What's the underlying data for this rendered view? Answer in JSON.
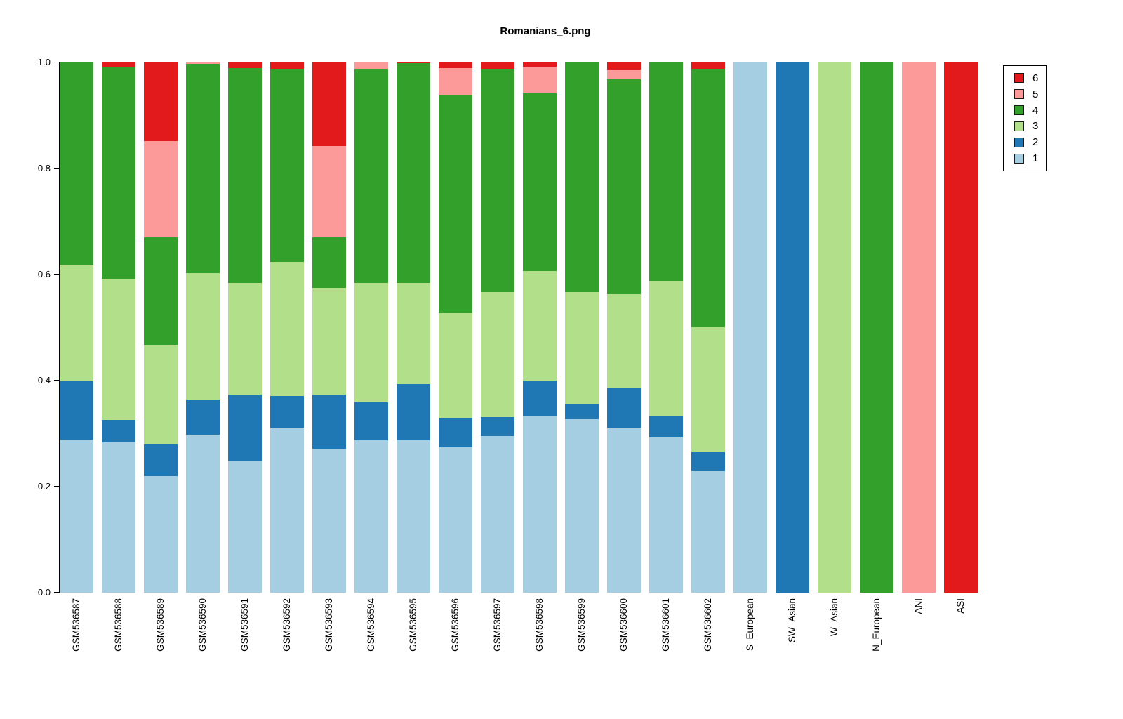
{
  "title": "Romanians_6.png",
  "y_axis": {
    "ticks": [
      {
        "label": "0.0",
        "value": 0.0
      },
      {
        "label": "0.2",
        "value": 0.2
      },
      {
        "label": "0.4",
        "value": 0.4
      },
      {
        "label": "0.6",
        "value": 0.6
      },
      {
        "label": "0.8",
        "value": 0.8
      },
      {
        "label": "1.0",
        "value": 1.0
      }
    ]
  },
  "legend": {
    "entries": [
      {
        "label": "6",
        "color": "#E31A1C"
      },
      {
        "label": "5",
        "color": "#FB9A99"
      },
      {
        "label": "4",
        "color": "#33A02C"
      },
      {
        "label": "3",
        "color": "#B2DF8A"
      },
      {
        "label": "2",
        "color": "#1F78B4"
      },
      {
        "label": "1",
        "color": "#A6CEE3"
      }
    ]
  },
  "chart_data": {
    "type": "bar",
    "stacked": true,
    "title": "Romanians_6.png",
    "xlabel": "",
    "ylabel": "",
    "ylim": [
      0,
      1
    ],
    "yticks": [
      0.0,
      0.2,
      0.4,
      0.6,
      0.8,
      1.0
    ],
    "grid": false,
    "legend_position": "top-right-outside",
    "categories": [
      "GSM536587",
      "GSM536588",
      "GSM536589",
      "GSM536590",
      "GSM536591",
      "GSM536592",
      "GSM536593",
      "GSM536594",
      "GSM536595",
      "GSM536596",
      "GSM536597",
      "GSM536598",
      "GSM536599",
      "GSM536600",
      "GSM536601",
      "GSM536602",
      "S_European",
      "SW_Asian",
      "W_Asian",
      "N_European",
      "ANI",
      "ASI"
    ],
    "series": [
      {
        "name": "1",
        "color": "#A6CEE3",
        "values": [
          0.288,
          0.283,
          0.22,
          0.298,
          0.249,
          0.311,
          0.271,
          0.287,
          0.287,
          0.274,
          0.295,
          0.333,
          0.327,
          0.311,
          0.292,
          0.229,
          1,
          0,
          0,
          0,
          0,
          0
        ]
      },
      {
        "name": "2",
        "color": "#1F78B4",
        "values": [
          0.11,
          0.043,
          0.059,
          0.066,
          0.124,
          0.06,
          0.102,
          0.071,
          0.106,
          0.056,
          0.036,
          0.066,
          0.027,
          0.075,
          0.041,
          0.035,
          0,
          1,
          0,
          0,
          0,
          0
        ]
      },
      {
        "name": "3",
        "color": "#B2DF8A",
        "values": [
          0.22,
          0.265,
          0.188,
          0.238,
          0.21,
          0.252,
          0.201,
          0.225,
          0.191,
          0.197,
          0.235,
          0.207,
          0.212,
          0.176,
          0.255,
          0.236,
          0,
          0,
          1,
          0,
          0,
          0
        ]
      },
      {
        "name": "4",
        "color": "#33A02C",
        "values": [
          0.382,
          0.398,
          0.202,
          0.394,
          0.405,
          0.364,
          0.095,
          0.404,
          0.413,
          0.411,
          0.421,
          0.334,
          0.434,
          0.405,
          0.412,
          0.487,
          0,
          0,
          0,
          1,
          0,
          0
        ]
      },
      {
        "name": "5",
        "color": "#FB9A99",
        "values": [
          0,
          0,
          0.182,
          0.004,
          0,
          0,
          0.172,
          0.013,
          0,
          0.05,
          0,
          0.051,
          0,
          0.018,
          0,
          0,
          0,
          0,
          0,
          0,
          1,
          0
        ]
      },
      {
        "name": "6",
        "color": "#E31A1C",
        "values": [
          0,
          0.011,
          0.149,
          0,
          0.012,
          0.013,
          0.159,
          0,
          0.003,
          0.012,
          0.013,
          0.009,
          0,
          0.015,
          0,
          0.013,
          0,
          0,
          0,
          0,
          0,
          1
        ]
      }
    ]
  }
}
